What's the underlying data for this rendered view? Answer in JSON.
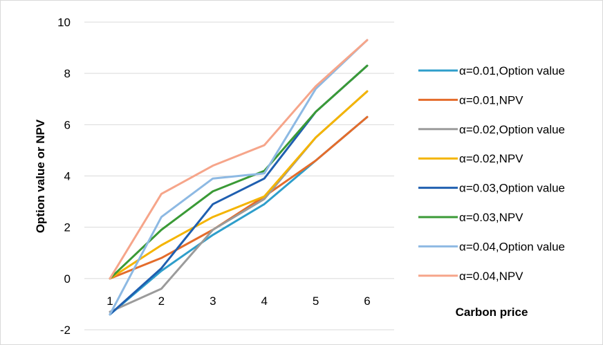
{
  "chart_data": {
    "type": "line",
    "title": "",
    "xlabel": "Carbon price",
    "ylabel": "Option value or NPV",
    "categories": [
      "1",
      "2",
      "3",
      "4",
      "5",
      "6"
    ],
    "ylim": [
      -2,
      10
    ],
    "yticks": [
      "-2",
      "0",
      "2",
      "4",
      "6",
      "8",
      "10"
    ],
    "grid": "horizontal",
    "legend_position": "right",
    "series": [
      {
        "name": "α=0.01,Option value",
        "color": "#2E9ECB",
        "values": [
          -1.4,
          0.3,
          1.7,
          2.9,
          4.6,
          6.3
        ]
      },
      {
        "name": "α=0.01,NPV",
        "color": "#E46C2B",
        "values": [
          0,
          0.8,
          1.9,
          3.2,
          4.6,
          6.3
        ]
      },
      {
        "name": "α=0.02,Option value",
        "color": "#9B9B9B",
        "values": [
          -1.3,
          -0.4,
          1.9,
          3.1,
          5.5,
          7.3
        ]
      },
      {
        "name": "α=0.02,NPV",
        "color": "#F4B400",
        "values": [
          0,
          1.3,
          2.4,
          3.2,
          5.5,
          7.3
        ]
      },
      {
        "name": "α=0.03,Option value",
        "color": "#1F5FB0",
        "values": [
          -1.4,
          0.4,
          2.9,
          3.9,
          6.5,
          8.3
        ]
      },
      {
        "name": "α=0.03,NPV",
        "color": "#3A9A36",
        "values": [
          0,
          1.9,
          3.4,
          4.2,
          6.5,
          8.3
        ]
      },
      {
        "name": "α=0.04,Option value",
        "color": "#8DB9E3",
        "values": [
          -1.4,
          2.4,
          3.9,
          4.1,
          7.4,
          9.3
        ]
      },
      {
        "name": "α=0.04,NPV",
        "color": "#F6A58A",
        "values": [
          0,
          3.3,
          4.4,
          5.2,
          7.5,
          9.3
        ]
      }
    ]
  }
}
